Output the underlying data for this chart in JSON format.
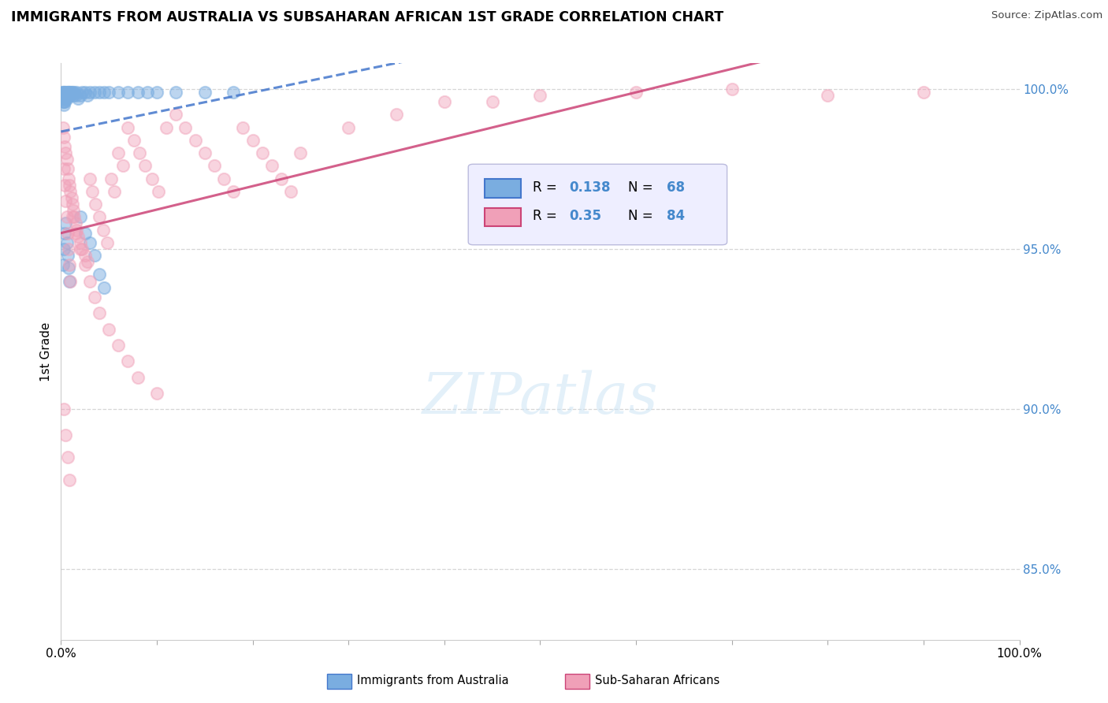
{
  "title": "IMMIGRANTS FROM AUSTRALIA VS SUBSAHARAN AFRICAN 1ST GRADE CORRELATION CHART",
  "source": "Source: ZipAtlas.com",
  "ylabel": "1st Grade",
  "xmin": 0.0,
  "xmax": 1.0,
  "ymin": 0.828,
  "ymax": 1.008,
  "australia_R": 0.138,
  "australia_N": 68,
  "subsaharan_R": 0.35,
  "subsaharan_N": 84,
  "australia_color": "#7aade0",
  "subsaharan_color": "#f0a0b8",
  "australia_line_color": "#4477cc",
  "subsaharan_line_color": "#cc4477",
  "grid_color": "#cccccc",
  "ytick_color": "#4488cc",
  "australia_x": [
    0.001,
    0.001,
    0.001,
    0.002,
    0.002,
    0.002,
    0.002,
    0.003,
    0.003,
    0.003,
    0.003,
    0.003,
    0.004,
    0.004,
    0.004,
    0.004,
    0.005,
    0.005,
    0.005,
    0.006,
    0.006,
    0.006,
    0.007,
    0.007,
    0.008,
    0.008,
    0.009,
    0.009,
    0.01,
    0.01,
    0.011,
    0.012,
    0.013,
    0.014,
    0.015,
    0.016,
    0.018,
    0.02,
    0.022,
    0.025,
    0.028,
    0.03,
    0.035,
    0.04,
    0.045,
    0.05,
    0.06,
    0.07,
    0.08,
    0.09,
    0.1,
    0.12,
    0.15,
    0.18,
    0.02,
    0.025,
    0.03,
    0.035,
    0.04,
    0.045,
    0.002,
    0.003,
    0.004,
    0.005,
    0.006,
    0.007,
    0.008,
    0.009
  ],
  "australia_y": [
    0.999,
    0.998,
    0.997,
    0.999,
    0.998,
    0.997,
    0.996,
    0.999,
    0.998,
    0.997,
    0.996,
    0.995,
    0.999,
    0.998,
    0.997,
    0.996,
    0.999,
    0.998,
    0.997,
    0.999,
    0.998,
    0.997,
    0.999,
    0.998,
    0.999,
    0.998,
    0.999,
    0.998,
    0.999,
    0.998,
    0.999,
    0.999,
    0.998,
    0.999,
    0.998,
    0.999,
    0.997,
    0.998,
    0.999,
    0.999,
    0.998,
    0.999,
    0.999,
    0.999,
    0.999,
    0.999,
    0.999,
    0.999,
    0.999,
    0.999,
    0.999,
    0.999,
    0.999,
    0.999,
    0.96,
    0.955,
    0.952,
    0.948,
    0.942,
    0.938,
    0.945,
    0.95,
    0.955,
    0.958,
    0.952,
    0.948,
    0.944,
    0.94
  ],
  "subsaharan_x": [
    0.002,
    0.003,
    0.004,
    0.005,
    0.006,
    0.007,
    0.008,
    0.009,
    0.01,
    0.011,
    0.012,
    0.013,
    0.014,
    0.015,
    0.016,
    0.018,
    0.02,
    0.022,
    0.025,
    0.028,
    0.03,
    0.033,
    0.036,
    0.04,
    0.044,
    0.048,
    0.052,
    0.056,
    0.06,
    0.065,
    0.07,
    0.076,
    0.082,
    0.088,
    0.095,
    0.102,
    0.11,
    0.12,
    0.13,
    0.14,
    0.15,
    0.16,
    0.17,
    0.18,
    0.19,
    0.2,
    0.21,
    0.22,
    0.23,
    0.24,
    0.25,
    0.3,
    0.35,
    0.4,
    0.45,
    0.5,
    0.6,
    0.7,
    0.8,
    0.9,
    0.003,
    0.004,
    0.005,
    0.006,
    0.007,
    0.008,
    0.009,
    0.01,
    0.012,
    0.015,
    0.02,
    0.025,
    0.03,
    0.035,
    0.04,
    0.05,
    0.06,
    0.07,
    0.08,
    0.1,
    0.003,
    0.005,
    0.007,
    0.009
  ],
  "subsaharan_y": [
    0.988,
    0.985,
    0.982,
    0.98,
    0.978,
    0.975,
    0.972,
    0.97,
    0.968,
    0.966,
    0.964,
    0.962,
    0.96,
    0.958,
    0.956,
    0.954,
    0.952,
    0.95,
    0.948,
    0.946,
    0.972,
    0.968,
    0.964,
    0.96,
    0.956,
    0.952,
    0.972,
    0.968,
    0.98,
    0.976,
    0.988,
    0.984,
    0.98,
    0.976,
    0.972,
    0.968,
    0.988,
    0.992,
    0.988,
    0.984,
    0.98,
    0.976,
    0.972,
    0.968,
    0.988,
    0.984,
    0.98,
    0.976,
    0.972,
    0.968,
    0.98,
    0.988,
    0.992,
    0.996,
    0.996,
    0.998,
    0.999,
    1.0,
    0.998,
    0.999,
    0.975,
    0.97,
    0.965,
    0.96,
    0.955,
    0.95,
    0.945,
    0.94,
    0.96,
    0.955,
    0.95,
    0.945,
    0.94,
    0.935,
    0.93,
    0.925,
    0.92,
    0.915,
    0.91,
    0.905,
    0.9,
    0.892,
    0.885,
    0.878
  ]
}
